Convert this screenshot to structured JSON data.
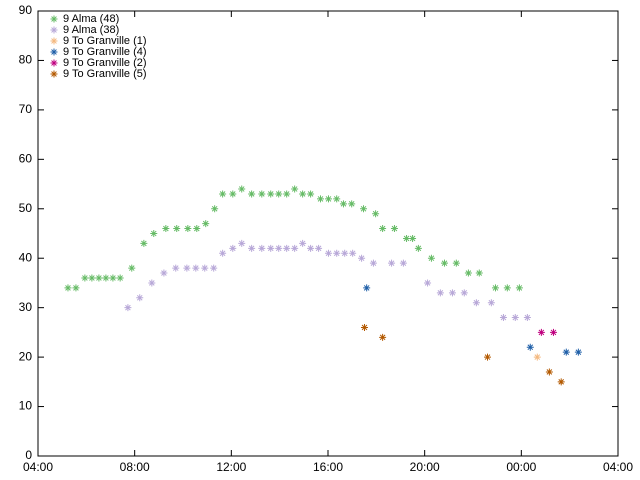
{
  "chart_data": {
    "type": "scatter",
    "xlim": [
      4,
      28
    ],
    "xticks": [
      {
        "value": 4,
        "label": "04:00"
      },
      {
        "value": 8,
        "label": "08:00"
      },
      {
        "value": 12,
        "label": "12:00"
      },
      {
        "value": 16,
        "label": "16:00"
      },
      {
        "value": 20,
        "label": "20:00"
      },
      {
        "value": 24,
        "label": "00:00"
      },
      {
        "value": 28,
        "label": "04:00"
      }
    ],
    "ylim": [
      0,
      90
    ],
    "yticks": [
      0,
      10,
      20,
      30,
      40,
      50,
      60,
      70,
      80,
      90
    ],
    "grid": false,
    "legend": "top-left",
    "series": [
      {
        "name": "9 Alma (48)",
        "color": "#66bb66",
        "x": [
          5.24,
          5.57,
          5.94,
          6.23,
          6.52,
          6.81,
          7.1,
          7.4,
          7.88,
          8.38,
          8.79,
          9.29,
          9.74,
          10.2,
          10.57,
          10.94,
          11.31,
          11.64,
          12.06,
          12.43,
          12.84,
          13.26,
          13.63,
          13.96,
          14.29,
          14.62,
          14.95,
          15.28,
          15.69,
          16.02,
          16.36,
          16.64,
          16.98,
          17.47,
          17.97,
          18.26,
          18.75,
          19.25,
          19.5,
          19.74,
          20.28,
          20.82,
          21.31,
          21.81,
          22.26,
          22.93,
          23.42,
          23.92
        ],
        "values": [
          34,
          34,
          36,
          36,
          36,
          36,
          36,
          36,
          38,
          43,
          45,
          46,
          46,
          46,
          46,
          47,
          50,
          53,
          53,
          54,
          53,
          53,
          53,
          53,
          53,
          54,
          53,
          53,
          52,
          52,
          52,
          51,
          51,
          50,
          49,
          46,
          46,
          44,
          44,
          42,
          40,
          39,
          39,
          37,
          37,
          34,
          34,
          34
        ]
      },
      {
        "name": "9 Alma (38)",
        "color": "#b8a8d8",
        "x": [
          7.72,
          8.21,
          8.71,
          9.21,
          9.7,
          10.16,
          10.53,
          10.9,
          11.27,
          11.64,
          12.06,
          12.43,
          12.84,
          13.26,
          13.63,
          13.96,
          14.29,
          14.62,
          14.95,
          15.28,
          15.61,
          16.02,
          16.36,
          16.69,
          17.02,
          17.39,
          17.88,
          18.63,
          19.12,
          20.12,
          20.65,
          21.15,
          21.64,
          22.14,
          22.76,
          23.26,
          23.75,
          24.25
        ],
        "values": [
          30,
          32,
          35,
          37,
          38,
          38,
          38,
          38,
          38,
          41,
          42,
          43,
          42,
          42,
          42,
          42,
          42,
          42,
          43,
          42,
          42,
          41,
          41,
          41,
          41,
          40,
          39,
          39,
          39,
          35,
          33,
          33,
          33,
          31,
          31,
          28,
          28,
          28
        ]
      },
      {
        "name": "9 To Granville (1)",
        "color": "#f4b980",
        "x": [
          24.66
        ],
        "values": [
          20
        ]
      },
      {
        "name": "9 To Granville (4)",
        "color": "#1f5fa8",
        "x": [
          17.6,
          24.37,
          25.86,
          26.36
        ],
        "values": [
          34,
          22,
          21,
          21
        ]
      },
      {
        "name": "9 To Granville (2)",
        "color": "#c0007f",
        "x": [
          24.83,
          25.33
        ],
        "values": [
          25,
          25
        ]
      },
      {
        "name": "9 To Granville (5)",
        "color": "#b35900",
        "x": [
          17.51,
          18.26,
          22.6,
          25.16,
          25.65
        ],
        "values": [
          26,
          24,
          20,
          17,
          15
        ]
      }
    ]
  }
}
